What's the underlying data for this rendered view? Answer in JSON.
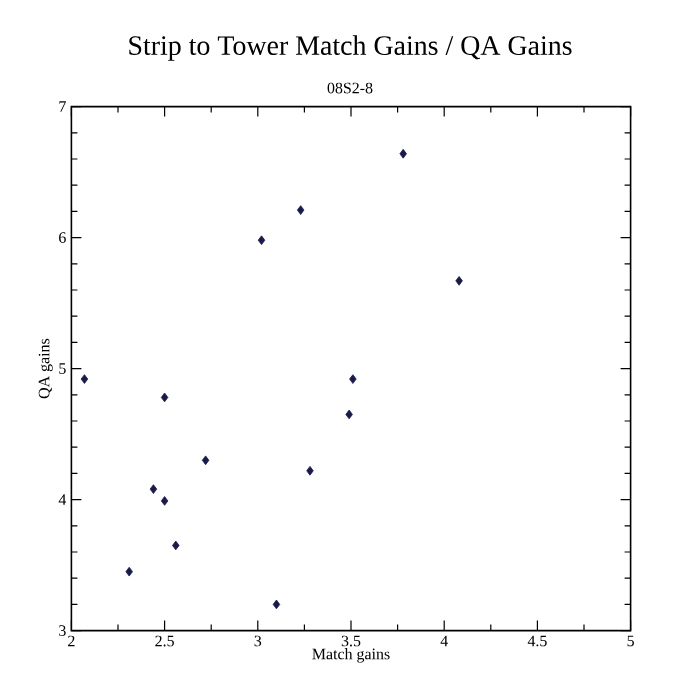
{
  "chart_data": {
    "type": "scatter",
    "title": "Strip to Tower Match Gains / QA Gains",
    "subtitle": "08S2-8",
    "xlabel": "Match gains",
    "ylabel": "QA gains",
    "xlim": [
      2,
      5
    ],
    "ylim": [
      3,
      7
    ],
    "xticks": [
      2,
      2.5,
      3,
      3.5,
      4,
      4.5,
      5
    ],
    "yticks": [
      3,
      4,
      5,
      6,
      7
    ],
    "marker": "diamond",
    "grid": false,
    "series": [
      {
        "color": "#1a1a4a",
        "x": [
          2.07,
          2.31,
          2.44,
          2.5,
          2.5,
          2.56,
          2.72,
          3.02,
          3.1,
          3.23,
          3.28,
          3.49,
          3.51,
          3.78,
          4.08
        ],
        "values": [
          4.92,
          3.45,
          4.08,
          4.78,
          3.99,
          3.65,
          4.3,
          5.98,
          3.2,
          6.21,
          4.22,
          4.65,
          4.92,
          6.64,
          5.67
        ]
      }
    ]
  }
}
